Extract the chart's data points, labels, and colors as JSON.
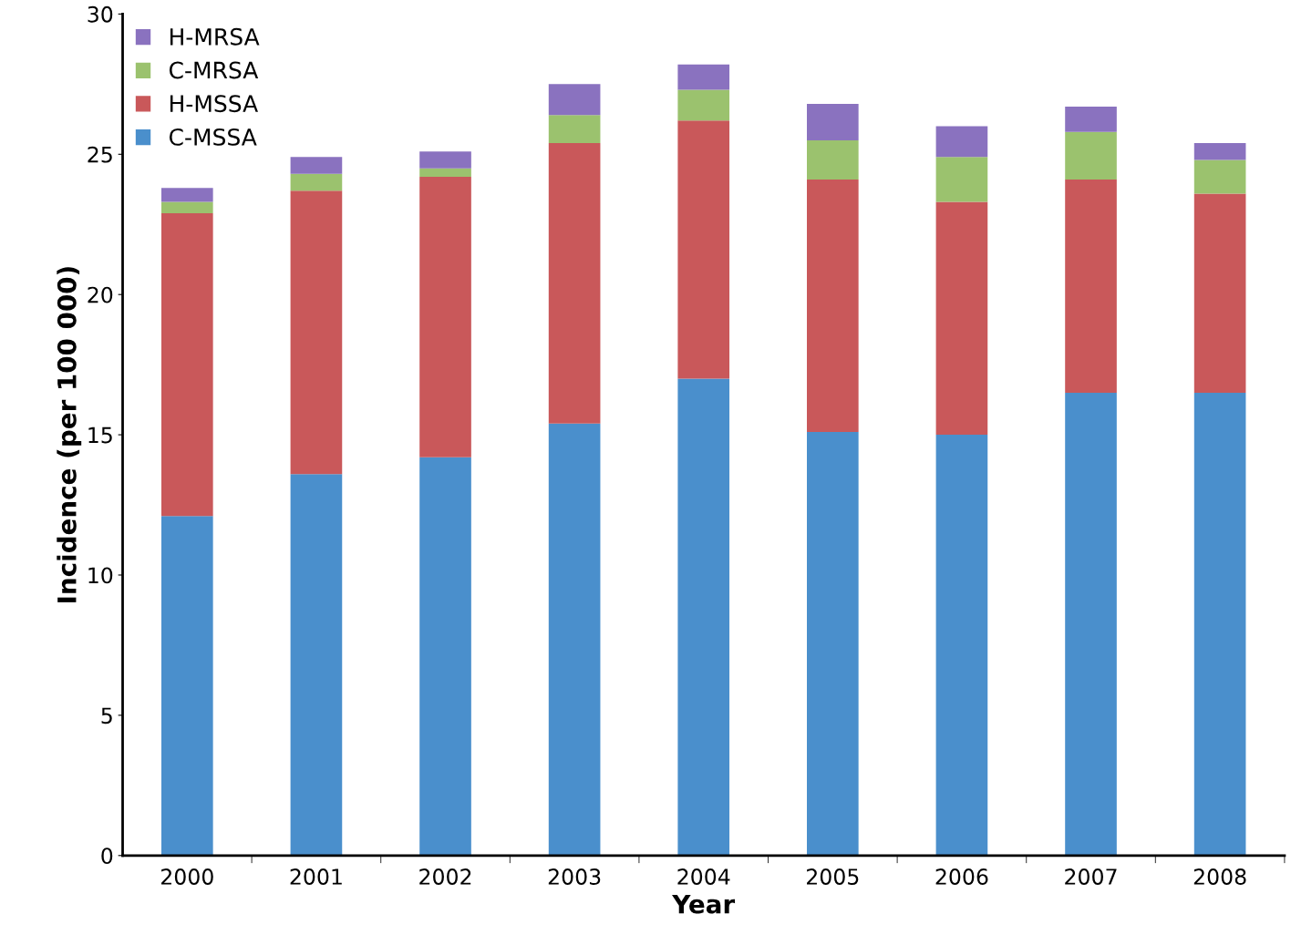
{
  "chart_data": {
    "type": "bar",
    "stacked": true,
    "xlabel": "Year",
    "ylabel": "Incidence (per 100 000)",
    "categories": [
      "2000",
      "2001",
      "2002",
      "2003",
      "2004",
      "2005",
      "2006",
      "2007",
      "2008"
    ],
    "series": [
      {
        "name": "C-MSSA",
        "color": "#4a8fcc",
        "values": [
          12.1,
          13.6,
          14.2,
          15.4,
          17.0,
          15.1,
          15.0,
          16.5,
          16.5
        ]
      },
      {
        "name": "H-MSSA",
        "color": "#c9585a",
        "values": [
          10.8,
          10.1,
          10.0,
          10.0,
          9.2,
          9.0,
          8.3,
          7.6,
          7.1
        ]
      },
      {
        "name": "C-MRSA",
        "color": "#9bc26e",
        "values": [
          0.4,
          0.6,
          0.3,
          1.0,
          1.1,
          1.4,
          1.6,
          1.7,
          1.2
        ]
      },
      {
        "name": "H-MRSA",
        "color": "#8a72bf",
        "values": [
          0.5,
          0.6,
          0.6,
          1.1,
          0.9,
          1.3,
          1.1,
          0.9,
          0.6
        ]
      }
    ],
    "ylim": [
      0,
      30
    ],
    "yticks": [
      0,
      5,
      10,
      15,
      20,
      25,
      30
    ],
    "grid": false,
    "legend": "top left"
  }
}
